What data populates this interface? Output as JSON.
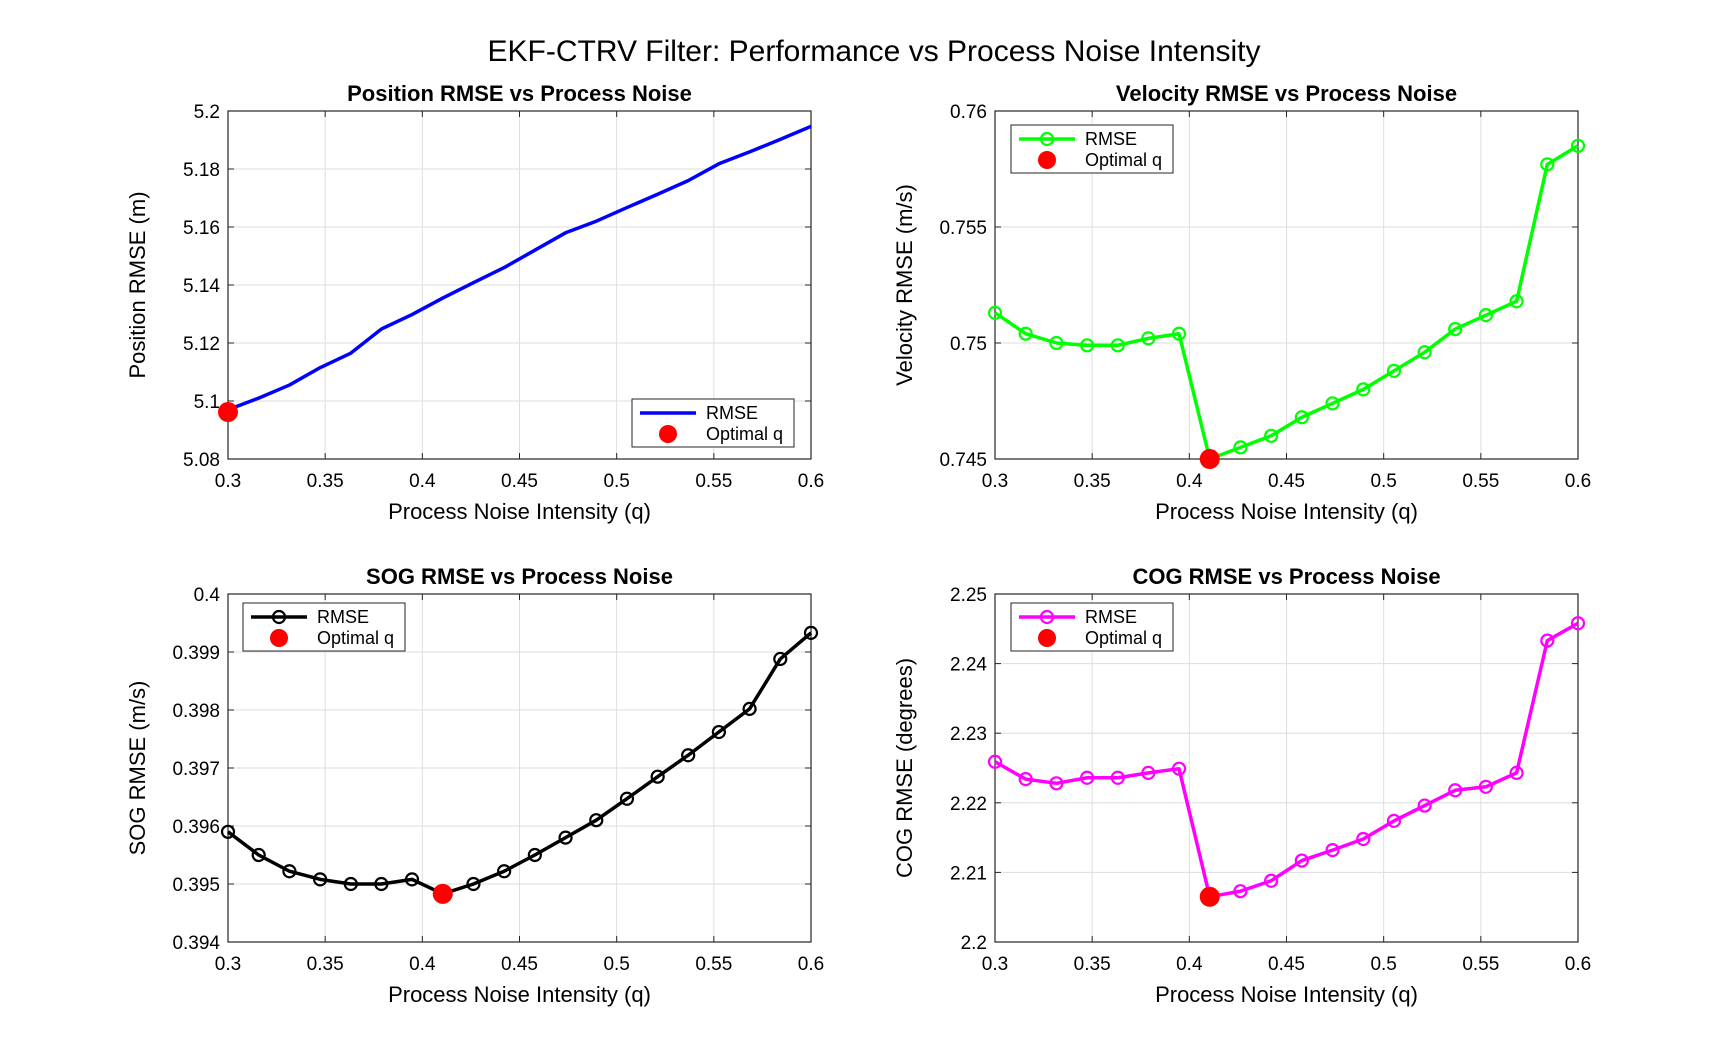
{
  "figure_title": "EKF-CTRV Filter: Performance vs Process Noise Intensity",
  "chart_data": [
    {
      "type": "line",
      "title": "Position RMSE vs Process Noise",
      "xlabel": "Process Noise Intensity (q)",
      "ylabel": "Position RMSE (m)",
      "xlim": [
        0.3,
        0.6
      ],
      "ylim": [
        5.08,
        5.2
      ],
      "xticks": [
        "0.3",
        "0.35",
        "0.4",
        "0.45",
        "0.5",
        "0.55",
        "0.6"
      ],
      "yticks": [
        "5.08",
        "5.1",
        "5.12",
        "5.14",
        "5.16",
        "5.18",
        "5.2"
      ],
      "grid": true,
      "legend_location": "bottom-right",
      "markers": false,
      "color": "#0000ff",
      "x": [
        0.3,
        0.3158,
        0.3316,
        0.3474,
        0.3632,
        0.3789,
        0.3947,
        0.4105,
        0.4263,
        0.4421,
        0.4579,
        0.4737,
        0.4895,
        0.5053,
        0.5211,
        0.5368,
        0.5526,
        0.5684,
        0.5842,
        0.6
      ],
      "series": [
        {
          "name": "RMSE",
          "values": [
            5.097,
            5.101,
            5.1055,
            5.1115,
            5.1165,
            5.1248,
            5.1298,
            5.1355,
            5.1408,
            5.146,
            5.152,
            5.158,
            5.162,
            5.1667,
            5.1713,
            5.176,
            5.1818,
            5.1859,
            5.1902,
            5.1947
          ]
        }
      ],
      "optimal": {
        "name": "Optimal q",
        "x": 0.3,
        "y": 5.0962,
        "color": "#ff0000"
      }
    },
    {
      "type": "line",
      "title": "Velocity RMSE vs Process Noise",
      "xlabel": "Process Noise Intensity (q)",
      "ylabel": "Velocity RMSE (m/s)",
      "xlim": [
        0.3,
        0.6
      ],
      "ylim": [
        0.745,
        0.76
      ],
      "xticks": [
        "0.3",
        "0.35",
        "0.4",
        "0.45",
        "0.5",
        "0.55",
        "0.6"
      ],
      "yticks": [
        "0.745",
        "0.75",
        "0.755",
        "0.76"
      ],
      "grid": true,
      "legend_location": "top-left",
      "markers": true,
      "color": "#00ff00",
      "x": [
        0.3,
        0.3158,
        0.3316,
        0.3474,
        0.3632,
        0.3789,
        0.3947,
        0.4105,
        0.4263,
        0.4421,
        0.4579,
        0.4737,
        0.4895,
        0.5053,
        0.5211,
        0.5368,
        0.5526,
        0.5684,
        0.5842,
        0.6
      ],
      "series": [
        {
          "name": "RMSE",
          "values": [
            0.7513,
            0.7504,
            0.75,
            0.7499,
            0.7499,
            0.7502,
            0.7504,
            0.745,
            0.7455,
            0.746,
            0.7468,
            0.7474,
            0.748,
            0.7488,
            0.7496,
            0.7506,
            0.7512,
            0.7518,
            0.7577,
            0.7585
          ]
        }
      ],
      "optimal": {
        "name": "Optimal q",
        "x": 0.4105,
        "y": 0.745,
        "color": "#ff0000"
      }
    },
    {
      "type": "line",
      "title": "SOG RMSE vs Process Noise",
      "xlabel": "Process Noise Intensity (q)",
      "ylabel": "SOG RMSE (m/s)",
      "xlim": [
        0.3,
        0.6
      ],
      "ylim": [
        0.394,
        0.4
      ],
      "xticks": [
        "0.3",
        "0.35",
        "0.4",
        "0.45",
        "0.5",
        "0.55",
        "0.6"
      ],
      "yticks": [
        "0.394",
        "0.395",
        "0.396",
        "0.397",
        "0.398",
        "0.399",
        "0.4"
      ],
      "grid": true,
      "legend_location": "top-left",
      "markers": true,
      "color": "#000000",
      "x": [
        0.3,
        0.3158,
        0.3316,
        0.3474,
        0.3632,
        0.3789,
        0.3947,
        0.4105,
        0.4263,
        0.4421,
        0.4579,
        0.4737,
        0.4895,
        0.5053,
        0.5211,
        0.5368,
        0.5526,
        0.5684,
        0.5842,
        0.6
      ],
      "series": [
        {
          "name": "RMSE",
          "values": [
            0.3959,
            0.3955,
            0.39522,
            0.39508,
            0.395,
            0.395,
            0.39508,
            0.39483,
            0.395,
            0.39522,
            0.3955,
            0.3958,
            0.3961,
            0.39647,
            0.39685,
            0.39722,
            0.39762,
            0.39802,
            0.39888,
            0.39933
          ]
        }
      ],
      "optimal": {
        "name": "Optimal q",
        "x": 0.4105,
        "y": 0.39483,
        "color": "#ff0000"
      }
    },
    {
      "type": "line",
      "title": "COG RMSE vs Process Noise",
      "xlabel": "Process Noise Intensity (q)",
      "ylabel": "COG RMSE (degrees)",
      "xlim": [
        0.3,
        0.6
      ],
      "ylim": [
        2.2,
        2.25
      ],
      "xticks": [
        "0.3",
        "0.35",
        "0.4",
        "0.45",
        "0.5",
        "0.55",
        "0.6"
      ],
      "yticks": [
        "2.2",
        "2.21",
        "2.22",
        "2.23",
        "2.24",
        "2.25"
      ],
      "grid": true,
      "legend_location": "top-left",
      "markers": true,
      "color": "#ff00ff",
      "x": [
        0.3,
        0.3158,
        0.3316,
        0.3474,
        0.3632,
        0.3789,
        0.3947,
        0.4105,
        0.4263,
        0.4421,
        0.4579,
        0.4737,
        0.4895,
        0.5053,
        0.5211,
        0.5368,
        0.5526,
        0.5684,
        0.5842,
        0.6
      ],
      "series": [
        {
          "name": "RMSE",
          "values": [
            2.2259,
            2.2234,
            2.2228,
            2.2236,
            2.2236,
            2.2243,
            2.2249,
            2.2065,
            2.2073,
            2.2088,
            2.2117,
            2.2132,
            2.2148,
            2.2174,
            2.2196,
            2.2218,
            2.2223,
            2.2243,
            2.2433,
            2.2458
          ]
        }
      ],
      "optimal": {
        "name": "Optimal q",
        "x": 0.4105,
        "y": 2.2065,
        "color": "#ff0000"
      }
    }
  ]
}
